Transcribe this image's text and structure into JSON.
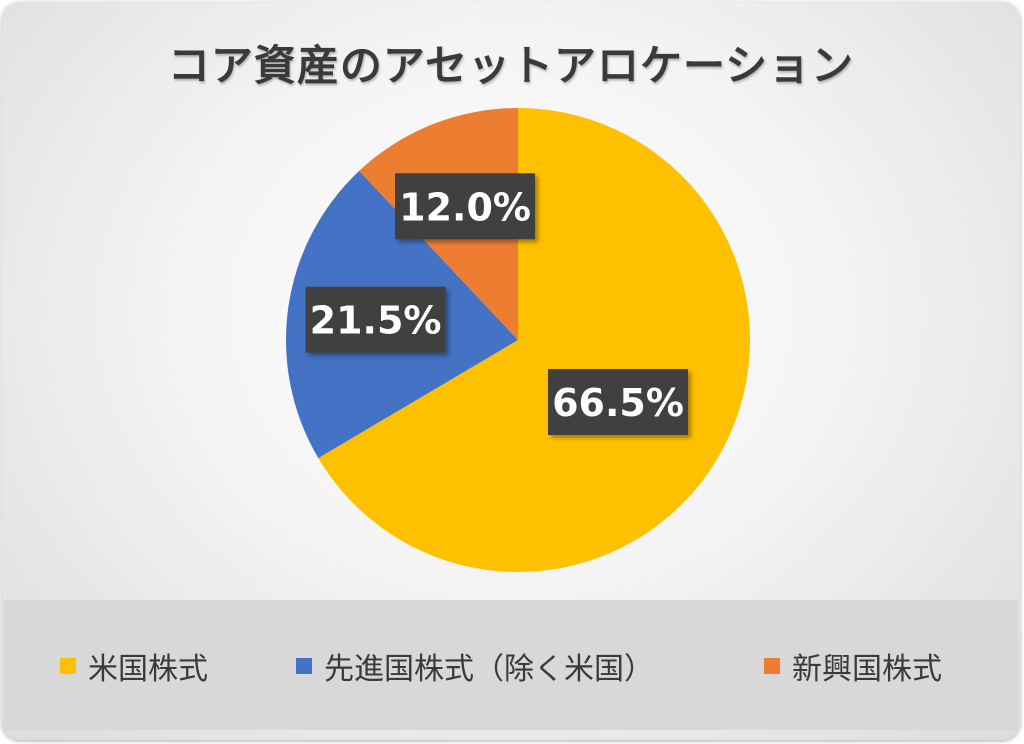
{
  "chart_data": {
    "type": "pie",
    "title": "コア資産のアセットアロケーション",
    "series": [
      {
        "name": "米国株式",
        "value": 66.5,
        "label": "66.5%",
        "color": "#FFC000"
      },
      {
        "name": "先進国株式（除く米国）",
        "value": 21.5,
        "label": "21.5%",
        "color": "#4472C4"
      },
      {
        "name": "新興国株式",
        "value": 12.0,
        "label": "12.0%",
        "color": "#ED7D31"
      }
    ],
    "legend_position": "bottom",
    "data_label_style": {
      "background": "#404040",
      "text_color": "#ffffff"
    }
  }
}
